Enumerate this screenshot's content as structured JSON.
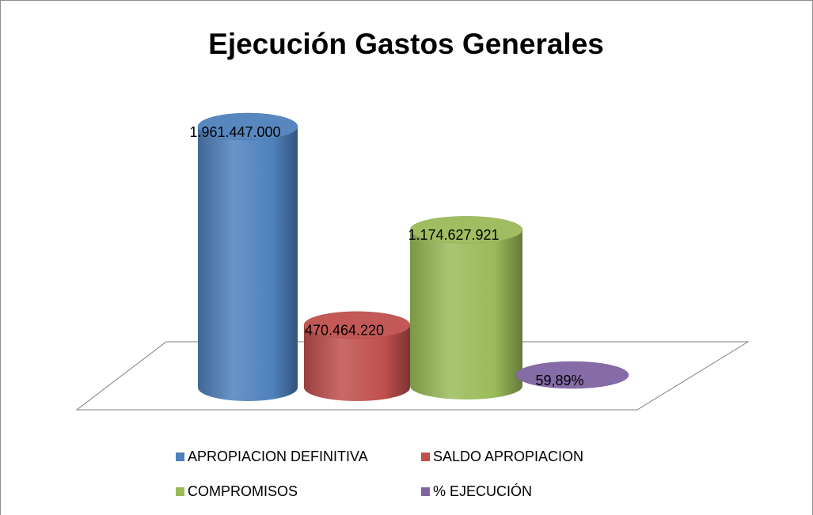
{
  "chart_data": {
    "type": "bar",
    "title": "Ejecución Gastos Generales",
    "series": [
      {
        "name": "APROPIACION DEFINITIVA",
        "color": "#4f81bd",
        "values": [
          1961447000
        ],
        "value_labels": [
          "1.961.447.000"
        ]
      },
      {
        "name": "SALDO APROPIACION",
        "color": "#c0504d",
        "values": [
          470464220
        ],
        "value_labels": [
          "470.464.220"
        ]
      },
      {
        "name": "COMPROMISOS",
        "color": "#9bbb59",
        "values": [
          1174627921
        ],
        "value_labels": [
          "1.174.627.921"
        ]
      },
      {
        "name": "% EJECUCIÓN",
        "color": "#8064a2",
        "values": [
          59.89
        ],
        "value_labels": [
          "59,89%"
        ]
      }
    ]
  }
}
